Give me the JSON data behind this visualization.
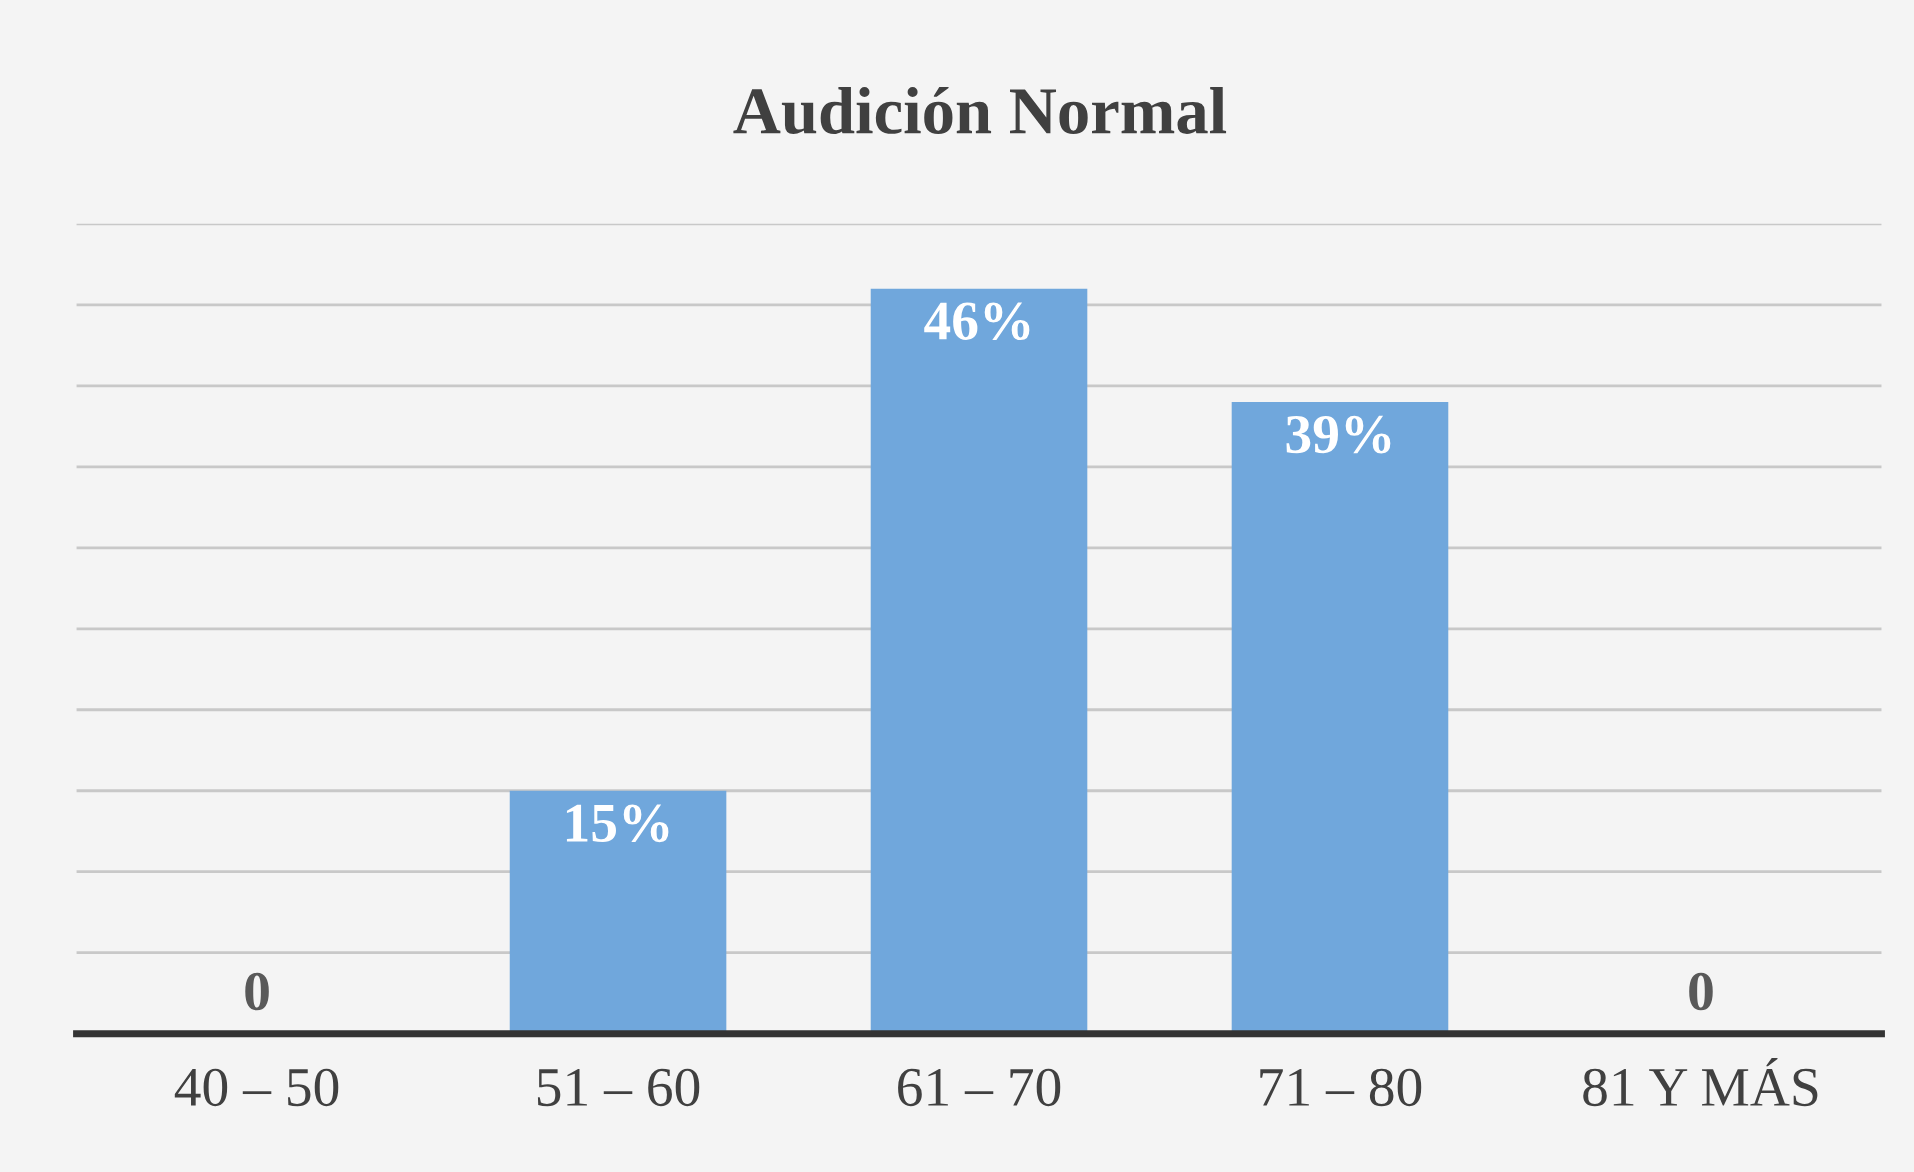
{
  "chart_data": {
    "type": "bar",
    "title": "Audición Normal",
    "categories": [
      "40 – 50",
      "51 – 60",
      "61 – 70",
      "71 – 80",
      "81 Y MÁS"
    ],
    "values": [
      0,
      15,
      46,
      39,
      0
    ],
    "value_labels": [
      "0",
      "15%",
      "46%",
      "39%",
      "0"
    ],
    "color": "#70a7dc",
    "ylim": [
      0,
      50
    ],
    "yticks": [
      {
        "value": 0,
        "label": null
      },
      {
        "value": 5,
        "label": null
      },
      {
        "value": 10,
        "label": null
      },
      {
        "value": 15,
        "label": null
      },
      {
        "value": 20,
        "label": null
      },
      {
        "value": 25,
        "label": null
      },
      {
        "value": 30,
        "label": null
      },
      {
        "value": 35,
        "label": null
      },
      {
        "value": 40,
        "label": null
      },
      {
        "value": 45,
        "label": null
      },
      {
        "value": 50,
        "label": null
      }
    ],
    "grid": "y",
    "tick_labels": "x"
  }
}
